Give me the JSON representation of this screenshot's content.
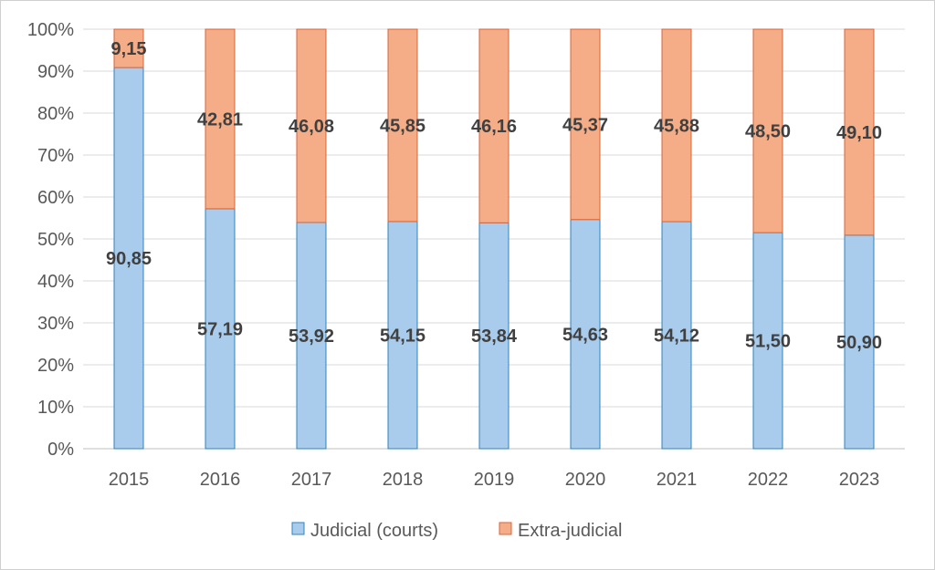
{
  "chart_data": {
    "type": "bar",
    "stacked": true,
    "percent_stacked": true,
    "categories": [
      "2015",
      "2016",
      "2017",
      "2018",
      "2019",
      "2020",
      "2021",
      "2022",
      "2023"
    ],
    "series": [
      {
        "name": "Judicial (courts)",
        "values": [
          90.85,
          57.19,
          53.92,
          54.15,
          53.84,
          54.63,
          54.12,
          51.5,
          50.9
        ],
        "labels": [
          "90,85",
          "57,19",
          "53,92",
          "54,15",
          "53,84",
          "54,63",
          "54,12",
          "51,50",
          "50,90"
        ],
        "color": "#a9cbec",
        "edge_color": "#2e86c1"
      },
      {
        "name": "Extra-judicial",
        "values": [
          9.15,
          42.81,
          46.08,
          45.85,
          46.16,
          45.37,
          45.88,
          48.5,
          49.1
        ],
        "labels": [
          "9,15",
          "42,81",
          "46,08",
          "45,85",
          "46,16",
          "45,37",
          "45,88",
          "48,50",
          "49,10"
        ],
        "color": "#f4ad87",
        "edge_color": "#d9653a"
      }
    ],
    "ylim": [
      0,
      100
    ],
    "yticks": [
      "0%",
      "10%",
      "20%",
      "30%",
      "40%",
      "50%",
      "60%",
      "70%",
      "80%",
      "90%",
      "100%"
    ],
    "grid": true,
    "legend": "bottom",
    "title": "",
    "xlabel": "",
    "ylabel": ""
  }
}
